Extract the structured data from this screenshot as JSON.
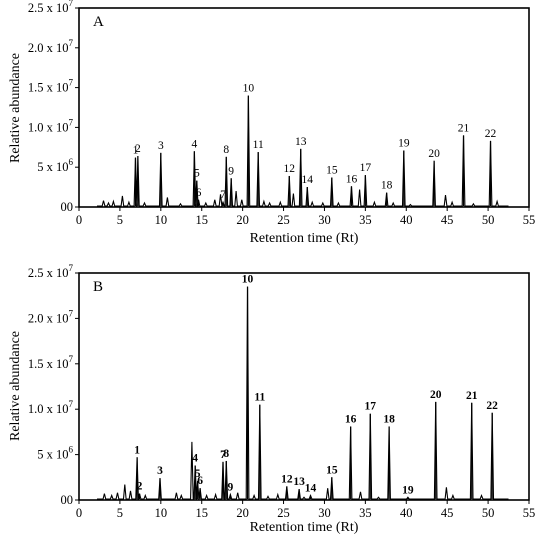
{
  "chart_data": [
    {
      "type": "line",
      "panel_label": "A",
      "xlabel": "Retention time (Rt)",
      "ylabel": "Relative abundance",
      "xlim": [
        0,
        55
      ],
      "ylim": [
        0,
        25000000
      ],
      "x_ticks": [
        0,
        5,
        10,
        15,
        20,
        25,
        30,
        35,
        40,
        45,
        50,
        55
      ],
      "y_ticks": [
        {
          "value": 0,
          "label": "00"
        },
        {
          "value": 5000000,
          "label": "5 x 10",
          "exp": "6"
        },
        {
          "value": 10000000,
          "label": "1.0 x 10",
          "exp": "7"
        },
        {
          "value": 15000000,
          "label": "1.5 x 10",
          "exp": "7"
        },
        {
          "value": 20000000,
          "label": "2.0 x 10",
          "exp": "7"
        },
        {
          "value": 25000000,
          "label": "2.5 x 10",
          "exp": "7"
        }
      ],
      "labels_bold": false,
      "peaks": [
        {
          "label": "1",
          "x": 6.9,
          "y": 6200000
        },
        {
          "label": "2",
          "x": 7.2,
          "y": 6400000
        },
        {
          "label": "3",
          "x": 10.0,
          "y": 6800000
        },
        {
          "label": "4",
          "x": 14.1,
          "y": 7000000
        },
        {
          "label": "5",
          "x": 14.4,
          "y": 3300000
        },
        {
          "label": "6",
          "x": 14.6,
          "y": 900000
        },
        {
          "label": "7",
          "x": 17.6,
          "y": 600000
        },
        {
          "label": "8",
          "x": 18.0,
          "y": 6300000
        },
        {
          "label": "9",
          "x": 18.6,
          "y": 3600000
        },
        {
          "label": "10",
          "x": 20.7,
          "y": 14000000
        },
        {
          "label": "11",
          "x": 21.9,
          "y": 6900000
        },
        {
          "label": "12",
          "x": 25.7,
          "y": 3900000
        },
        {
          "label": "13",
          "x": 27.1,
          "y": 7300000
        },
        {
          "label": "14",
          "x": 27.9,
          "y": 2500000
        },
        {
          "label": "15",
          "x": 30.9,
          "y": 3700000
        },
        {
          "label": "16",
          "x": 33.3,
          "y": 2600000
        },
        {
          "label": "17",
          "x": 35.0,
          "y": 4000000
        },
        {
          "label": "18",
          "x": 37.6,
          "y": 1800000
        },
        {
          "label": "19",
          "x": 39.7,
          "y": 7100000
        },
        {
          "label": "20",
          "x": 43.4,
          "y": 5800000
        },
        {
          "label": "21",
          "x": 47.0,
          "y": 9000000
        },
        {
          "label": "22",
          "x": 50.3,
          "y": 8300000
        }
      ],
      "minor_peaks": [
        {
          "x": 3.0,
          "y": 800000
        },
        {
          "x": 3.6,
          "y": 500000
        },
        {
          "x": 4.2,
          "y": 700000
        },
        {
          "x": 5.3,
          "y": 1400000
        },
        {
          "x": 6.1,
          "y": 600000
        },
        {
          "x": 8.0,
          "y": 500000
        },
        {
          "x": 10.8,
          "y": 1200000
        },
        {
          "x": 12.4,
          "y": 400000
        },
        {
          "x": 15.5,
          "y": 500000
        },
        {
          "x": 16.6,
          "y": 900000
        },
        {
          "x": 17.3,
          "y": 1600000
        },
        {
          "x": 19.2,
          "y": 2000000
        },
        {
          "x": 19.9,
          "y": 900000
        },
        {
          "x": 22.6,
          "y": 700000
        },
        {
          "x": 23.3,
          "y": 500000
        },
        {
          "x": 24.6,
          "y": 600000
        },
        {
          "x": 26.2,
          "y": 1700000
        },
        {
          "x": 28.5,
          "y": 600000
        },
        {
          "x": 29.8,
          "y": 500000
        },
        {
          "x": 31.7,
          "y": 500000
        },
        {
          "x": 34.3,
          "y": 2200000
        },
        {
          "x": 36.1,
          "y": 600000
        },
        {
          "x": 38.4,
          "y": 500000
        },
        {
          "x": 40.5,
          "y": 300000
        },
        {
          "x": 44.8,
          "y": 1500000
        },
        {
          "x": 45.6,
          "y": 600000
        },
        {
          "x": 48.2,
          "y": 400000
        },
        {
          "x": 51.1,
          "y": 700000
        }
      ]
    },
    {
      "type": "line",
      "panel_label": "B",
      "xlabel": "Retention time (Rt)",
      "ylabel": "Relative abundance",
      "xlim": [
        0,
        55
      ],
      "ylim": [
        0,
        25000000
      ],
      "x_ticks": [
        0,
        5,
        10,
        15,
        20,
        25,
        30,
        35,
        40,
        45,
        50,
        55
      ],
      "y_ticks": [
        {
          "value": 0,
          "label": "00"
        },
        {
          "value": 5000000,
          "label": "5 x 10",
          "exp": "6"
        },
        {
          "value": 10000000,
          "label": "1.0 x 10",
          "exp": "7"
        },
        {
          "value": 15000000,
          "label": "1.5 x 10",
          "exp": "7"
        },
        {
          "value": 20000000,
          "label": "2.0 x 10",
          "exp": "7"
        },
        {
          "value": 25000000,
          "label": "2.5 x 10",
          "exp": "7"
        }
      ],
      "labels_bold": true,
      "peaks": [
        {
          "label": "1",
          "x": 7.1,
          "y": 4700000
        },
        {
          "label": "2",
          "x": 7.4,
          "y": 700000
        },
        {
          "label": "3",
          "x": 9.9,
          "y": 2400000
        },
        {
          "label": "4",
          "x": 14.2,
          "y": 3800000
        },
        {
          "label": "5",
          "x": 14.5,
          "y": 2100000
        },
        {
          "label": "6",
          "x": 14.8,
          "y": 1300000
        },
        {
          "label": "7",
          "x": 17.6,
          "y": 4200000
        },
        {
          "label": "8",
          "x": 18.0,
          "y": 4300000
        },
        {
          "label": "9",
          "x": 18.5,
          "y": 600000
        },
        {
          "label": "10",
          "x": 20.6,
          "y": 23500000
        },
        {
          "label": "11",
          "x": 22.1,
          "y": 10500000
        },
        {
          "label": "12",
          "x": 25.4,
          "y": 1500000
        },
        {
          "label": "13",
          "x": 26.9,
          "y": 1200000
        },
        {
          "label": "14",
          "x": 28.3,
          "y": 500000
        },
        {
          "label": "15",
          "x": 30.9,
          "y": 2500000
        },
        {
          "label": "16",
          "x": 33.2,
          "y": 8100000
        },
        {
          "label": "17",
          "x": 35.6,
          "y": 9500000
        },
        {
          "label": "18",
          "x": 37.9,
          "y": 8100000
        },
        {
          "label": "19",
          "x": 40.2,
          "y": 300000
        },
        {
          "label": "20",
          "x": 43.6,
          "y": 10800000
        },
        {
          "label": "21",
          "x": 48.0,
          "y": 10700000
        },
        {
          "label": "22",
          "x": 50.5,
          "y": 9600000
        }
      ],
      "minor_peaks": [
        {
          "x": 3.1,
          "y": 700000
        },
        {
          "x": 4.0,
          "y": 500000
        },
        {
          "x": 4.7,
          "y": 800000
        },
        {
          "x": 5.6,
          "y": 1700000
        },
        {
          "x": 6.3,
          "y": 1000000
        },
        {
          "x": 8.1,
          "y": 500000
        },
        {
          "x": 11.9,
          "y": 800000
        },
        {
          "x": 12.5,
          "y": 500000
        },
        {
          "x": 13.8,
          "y": 6400000
        },
        {
          "x": 15.6,
          "y": 500000
        },
        {
          "x": 16.7,
          "y": 600000
        },
        {
          "x": 19.4,
          "y": 800000
        },
        {
          "x": 21.4,
          "y": 500000
        },
        {
          "x": 23.1,
          "y": 400000
        },
        {
          "x": 24.3,
          "y": 600000
        },
        {
          "x": 27.5,
          "y": 300000
        },
        {
          "x": 30.4,
          "y": 1300000
        },
        {
          "x": 34.4,
          "y": 900000
        },
        {
          "x": 36.6,
          "y": 300000
        },
        {
          "x": 44.9,
          "y": 1400000
        },
        {
          "x": 45.7,
          "y": 500000
        },
        {
          "x": 49.2,
          "y": 500000
        }
      ]
    }
  ]
}
